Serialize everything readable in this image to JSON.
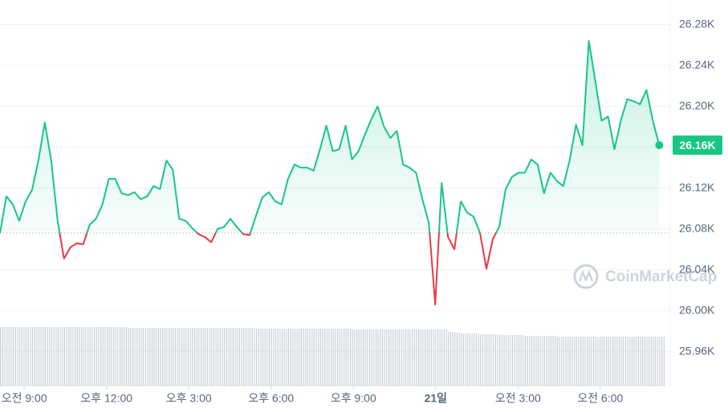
{
  "chart_data": {
    "type": "line",
    "color_up": "#16c784",
    "color_down": "#ea3943",
    "baseline": 26076,
    "last_price_label": "26.16K",
    "watermark": "CoinMarketCap",
    "xlim": [
      487,
      1953
    ],
    "ylim": [
      25926,
      26304
    ],
    "vlim": [
      0,
      100
    ],
    "grid": true,
    "yticks": [
      {
        "value": 25960,
        "label": "25.96K"
      },
      {
        "value": 26000,
        "label": "26.00K"
      },
      {
        "value": 26040,
        "label": "26.04K"
      },
      {
        "value": 26080,
        "label": "26.08K"
      },
      {
        "value": 26120,
        "label": "26.12K"
      },
      {
        "value": 26160,
        "label": "26.16K"
      },
      {
        "value": 26200,
        "label": "26.20K"
      },
      {
        "value": 26240,
        "label": "26.24K"
      },
      {
        "value": 26280,
        "label": "26.28K"
      }
    ],
    "xticks": [
      {
        "value": 540,
        "label": "오전 9:00"
      },
      {
        "value": 720,
        "label": "오후 12:00"
      },
      {
        "value": 900,
        "label": "오후 3:00"
      },
      {
        "value": 1080,
        "label": "오후 6:00"
      },
      {
        "value": 1260,
        "label": "오후 9:00"
      },
      {
        "value": 1440,
        "label": "21일"
      },
      {
        "value": 1620,
        "label": "오전 3:00"
      },
      {
        "value": 1800,
        "label": "오전 6:00"
      }
    ],
    "x": [
      487,
      501,
      515,
      529,
      543,
      557,
      571,
      585,
      599,
      613,
      627,
      641,
      655,
      669,
      683,
      697,
      711,
      725,
      739,
      753,
      767,
      781,
      795,
      809,
      823,
      837,
      851,
      865,
      879,
      893,
      907,
      921,
      935,
      949,
      963,
      977,
      991,
      1005,
      1019,
      1033,
      1047,
      1061,
      1075,
      1089,
      1103,
      1117,
      1131,
      1145,
      1159,
      1173,
      1187,
      1201,
      1215,
      1229,
      1243,
      1257,
      1271,
      1285,
      1299,
      1313,
      1327,
      1341,
      1355,
      1369,
      1383,
      1397,
      1411,
      1425,
      1439,
      1453,
      1467,
      1481,
      1495,
      1509,
      1523,
      1537,
      1551,
      1565,
      1579,
      1593,
      1607,
      1621,
      1635,
      1649,
      1663,
      1677,
      1691,
      1705,
      1719,
      1733,
      1747,
      1761,
      1775,
      1789,
      1803,
      1817,
      1831,
      1845,
      1859,
      1873,
      1887,
      1901,
      1915,
      1929
    ],
    "values": [
      26076,
      26112,
      26104,
      26088,
      26107,
      26118,
      26147,
      26184,
      26147,
      26088,
      26051,
      26062,
      26066,
      26065,
      26084,
      26090,
      26104,
      26129,
      26129,
      26115,
      26113,
      26116,
      26109,
      26112,
      26122,
      26119,
      26147,
      26138,
      26090,
      26088,
      26081,
      26075,
      26072,
      26067,
      26080,
      26082,
      26090,
      26082,
      26075,
      26074,
      26093,
      26111,
      26116,
      26107,
      26104,
      26129,
      26143,
      26140,
      26140,
      26137,
      26158,
      26181,
      26156,
      26158,
      26181,
      26148,
      26156,
      26172,
      26187,
      26200,
      26180,
      26169,
      26176,
      26143,
      26140,
      26135,
      26109,
      26086,
      26006,
      26125,
      26072,
      26060,
      26107,
      26096,
      26092,
      26076,
      26041,
      26070,
      26082,
      26119,
      26131,
      26135,
      26135,
      26148,
      26143,
      26115,
      26135,
      26127,
      26122,
      26147,
      26182,
      26162,
      26264,
      26225,
      26186,
      26190,
      26158,
      26186,
      26207,
      26205,
      26202,
      26216,
      26186,
      26162
    ],
    "volume": [
      74,
      74,
      74,
      74,
      74,
      74,
      74,
      74,
      74,
      74,
      74,
      74,
      74,
      74,
      74,
      74,
      74,
      74,
      74,
      74,
      73,
      73,
      73,
      73,
      73,
      73,
      73,
      73,
      73,
      73,
      73,
      73,
      73,
      73,
      73,
      73,
      73,
      73,
      73,
      73,
      72,
      72,
      72,
      72,
      72,
      72,
      72,
      72,
      72,
      72,
      72,
      72,
      72,
      72,
      72,
      71,
      71,
      71,
      71,
      71,
      71,
      71,
      71,
      71,
      71,
      71,
      71,
      71,
      71,
      71,
      68,
      67,
      66,
      66,
      66,
      65,
      65,
      65,
      64,
      64,
      64,
      64,
      63,
      63,
      63,
      63,
      63,
      62,
      62,
      62,
      62,
      62,
      62,
      62,
      62,
      62,
      62,
      62,
      62,
      62,
      62,
      62,
      62,
      62
    ]
  }
}
